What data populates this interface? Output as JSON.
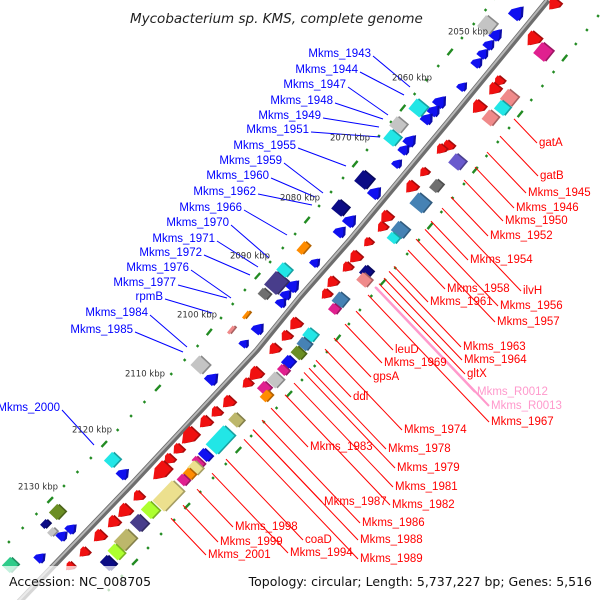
{
  "title": "Mycobacterium sp. KMS, complete genome",
  "footer": {
    "accession": "Accession: NC_008705",
    "topology": "Topology: circular; Length: 5,737,227 bp; Genes: 5,516"
  },
  "kbp_labels": [
    "2050 kbp",
    "2060 kbp",
    "2070 kbp",
    "2080 kbp",
    "2090 kbp",
    "2100 kbp",
    "2110 kbp",
    "2120 kbp",
    "2130 kbp"
  ],
  "forward_labels": [
    "Mkms_1943",
    "Mkms_1944",
    "Mkms_1947",
    "Mkms_1948",
    "Mkms_1949",
    "Mkms_1951",
    "Mkms_1955",
    "Mkms_1959",
    "Mkms_1960",
    "Mkms_1962",
    "Mkms_1966",
    "Mkms_1970",
    "Mkms_1971",
    "Mkms_1972",
    "Mkms_1976",
    "Mkms_1977",
    "rpmB",
    "Mkms_1984",
    "Mkms_1985",
    "Mkms_2000"
  ],
  "reverse_labels": [
    "gatA",
    "gatB",
    "Mkms_1945",
    "Mkms_1946",
    "Mkms_1950",
    "Mkms_1952",
    "Mkms_1954",
    "ilvH",
    "Mkms_1958",
    "Mkms_1961",
    "Mkms_1956",
    "Mkms_1957",
    "Mkms_1963",
    "Mkms_1964",
    "leuD",
    "Mkms_1969",
    "gltX",
    "gpsA",
    "Mkms_R0012",
    "Mkms_R0013",
    "ddl",
    "Mkms_1967",
    "Mkms_1974",
    "Mkms_1983",
    "Mkms_1978",
    "Mkms_1979",
    "Mkms_1981",
    "Mkms_1987",
    "Mkms_1982",
    "Mkms_1986",
    "Mkms_1998",
    "Mkms_1988",
    "Mkms_1999",
    "coaD",
    "Mkms_1994",
    "Mkms_1989",
    "Mkms_2001"
  ],
  "rna_labels": [
    "Mkms_R0012",
    "Mkms_R0013"
  ],
  "colors": {
    "forward": "#0000ff",
    "reverse": "#ff0000",
    "rna": "#ff99cc",
    "tick": "#228b22",
    "backbone": "#8a8a8a"
  }
}
